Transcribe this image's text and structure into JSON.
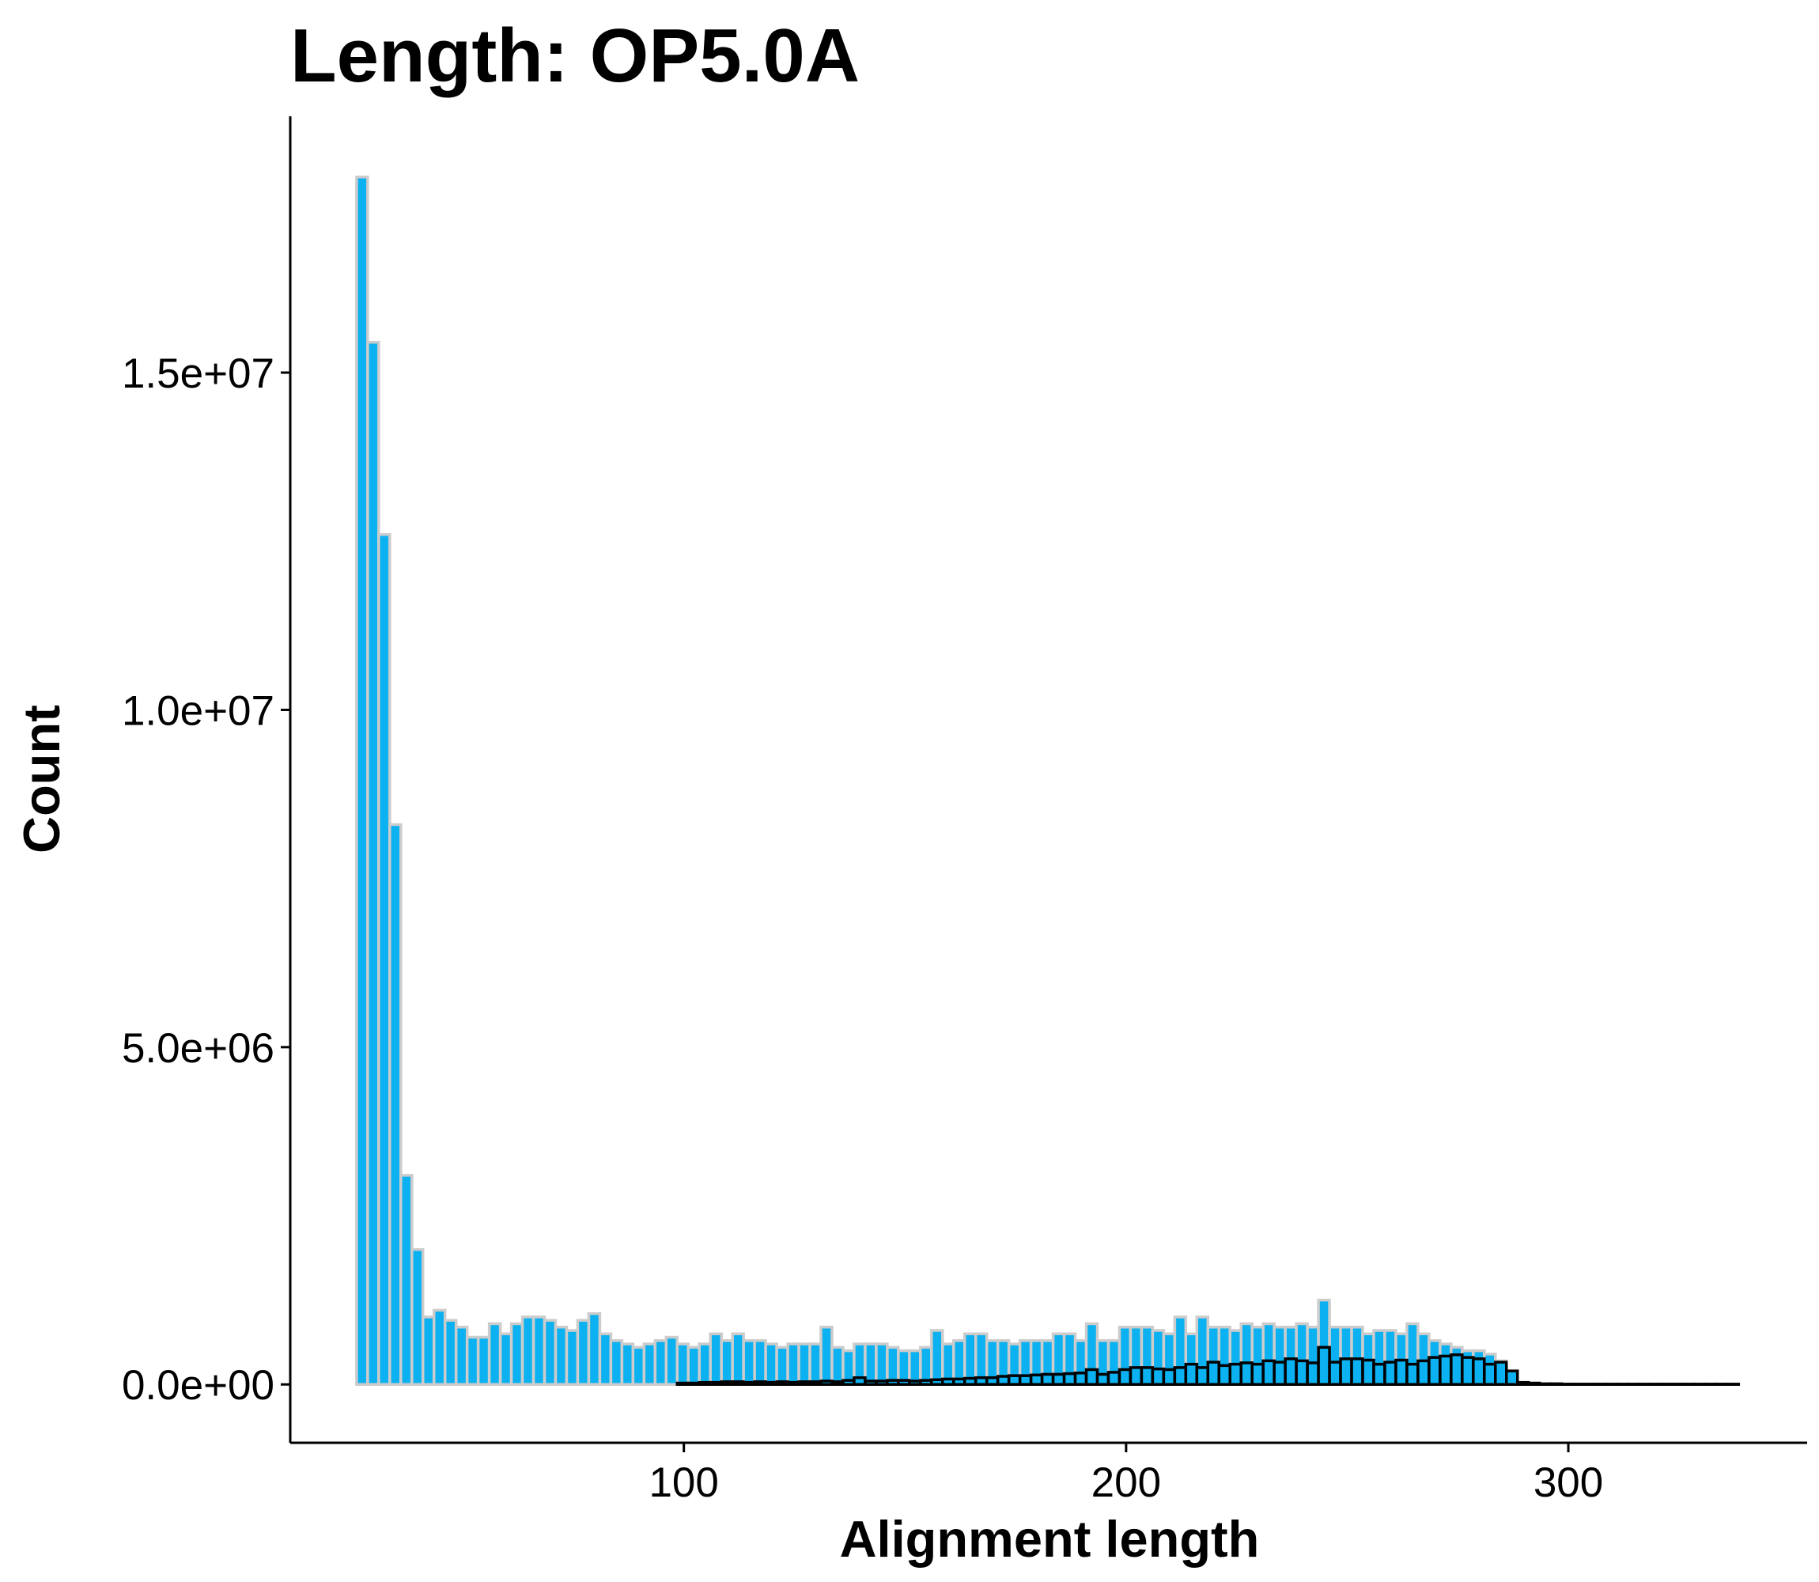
{
  "chart_data": {
    "type": "histogram",
    "title": "Length: OP5.0A",
    "xlabel": "Alignment length",
    "ylabel": "Count",
    "bins": [
      26,
      28.5,
      31,
      33.5,
      36,
      38.5,
      41,
      43.5,
      46,
      48.5,
      51,
      53.5,
      56,
      58.5,
      61,
      63.5,
      66,
      68.5,
      71,
      73.5,
      76,
      78.5,
      81,
      83.5,
      86,
      88.5,
      91,
      93.5,
      96,
      98.5,
      101,
      103.5,
      106,
      108.5,
      111,
      113.5,
      116,
      118.5,
      121,
      123.5,
      126,
      128.5,
      131,
      133.5,
      136,
      138.5,
      141,
      143.5,
      146,
      148.5,
      151,
      153.5,
      156,
      158.5,
      161,
      163.5,
      166,
      168.5,
      171,
      173.5,
      176,
      178.5,
      181,
      183.5,
      186,
      188.5,
      191,
      193.5,
      196,
      198.5,
      201,
      203.5,
      206,
      208.5,
      211,
      213.5,
      216,
      218.5,
      221,
      223.5,
      226,
      228.5,
      231,
      233.5,
      236,
      238.5,
      241,
      243.5,
      246,
      248.5,
      251,
      253.5,
      256,
      258.5,
      261,
      263.5,
      266,
      268.5,
      271,
      273.5,
      276,
      278.5,
      281,
      283.5,
      286,
      288.5,
      291,
      293.5,
      296,
      298.5,
      301,
      303.5,
      306,
      308.5,
      311,
      313.5,
      316,
      318.5,
      321,
      323.5,
      326,
      328.5,
      331,
      333.5,
      336,
      338.5,
      341
    ],
    "series": [
      {
        "color": "#0bb1f0",
        "edgecolor": "#cccccc",
        "values": [
          17900000,
          15450000,
          12600000,
          8300000,
          3100000,
          2000000,
          1000000,
          1100000,
          950000,
          850000,
          700000,
          700000,
          900000,
          750000,
          900000,
          1000000,
          1000000,
          950000,
          850000,
          800000,
          950000,
          1050000,
          750000,
          650000,
          600000,
          550000,
          600000,
          650000,
          700000,
          600000,
          550000,
          600000,
          750000,
          650000,
          750000,
          650000,
          650000,
          600000,
          550000,
          600000,
          600000,
          600000,
          850000,
          550000,
          500000,
          600000,
          600000,
          600000,
          550000,
          500000,
          500000,
          550000,
          800000,
          600000,
          650000,
          750000,
          750000,
          650000,
          650000,
          600000,
          650000,
          650000,
          650000,
          750000,
          750000,
          650000,
          900000,
          650000,
          650000,
          850000,
          850000,
          850000,
          800000,
          750000,
          1000000,
          750000,
          1000000,
          850000,
          850000,
          800000,
          900000,
          850000,
          900000,
          850000,
          850000,
          900000,
          850000,
          1250000,
          850000,
          850000,
          850000,
          750000,
          800000,
          800000,
          750000,
          900000,
          750000,
          650000,
          600000,
          550000,
          500000,
          500000,
          450000,
          350000,
          50000,
          0,
          0,
          0,
          0,
          0,
          0,
          0,
          0,
          0,
          0,
          0,
          0,
          0,
          0,
          0,
          0,
          0,
          0,
          0,
          0,
          0
        ]
      },
      {
        "color": "#0bb1f0",
        "edgecolor": "#000000",
        "values": [
          0,
          0,
          0,
          0,
          0,
          0,
          0,
          0,
          0,
          0,
          0,
          0,
          0,
          0,
          0,
          0,
          0,
          0,
          0,
          0,
          0,
          0,
          0,
          0,
          0,
          0,
          0,
          0,
          0,
          20000,
          20000,
          30000,
          30000,
          40000,
          40000,
          30000,
          40000,
          30000,
          40000,
          30000,
          40000,
          40000,
          50000,
          40000,
          60000,
          100000,
          50000,
          50000,
          60000,
          60000,
          50000,
          60000,
          70000,
          80000,
          80000,
          90000,
          100000,
          100000,
          120000,
          130000,
          130000,
          140000,
          150000,
          150000,
          160000,
          170000,
          220000,
          150000,
          180000,
          220000,
          250000,
          250000,
          230000,
          220000,
          250000,
          300000,
          250000,
          330000,
          280000,
          300000,
          320000,
          300000,
          350000,
          330000,
          380000,
          350000,
          320000,
          550000,
          330000,
          380000,
          380000,
          360000,
          300000,
          330000,
          360000,
          300000,
          350000,
          400000,
          420000,
          440000,
          400000,
          380000,
          300000,
          330000,
          200000,
          30000,
          20000,
          10000,
          10000,
          5000,
          5000,
          5000,
          5000,
          5000,
          5000,
          5000,
          5000,
          5000,
          5000,
          5000,
          5000,
          5000,
          5000,
          5000,
          5000,
          0
        ]
      }
    ],
    "xlim": [
      11,
      354
    ],
    "xticks": [
      100,
      200,
      300
    ],
    "ylim": [
      -865000,
      18800000
    ],
    "yticks": [
      {
        "value": 0,
        "label": "0.0e+00"
      },
      {
        "value": 5000000,
        "label": "5.0e+06"
      },
      {
        "value": 10000000,
        "label": "1.0e+07"
      },
      {
        "value": 15000000,
        "label": "1.5e+07"
      }
    ],
    "grid": false
  }
}
